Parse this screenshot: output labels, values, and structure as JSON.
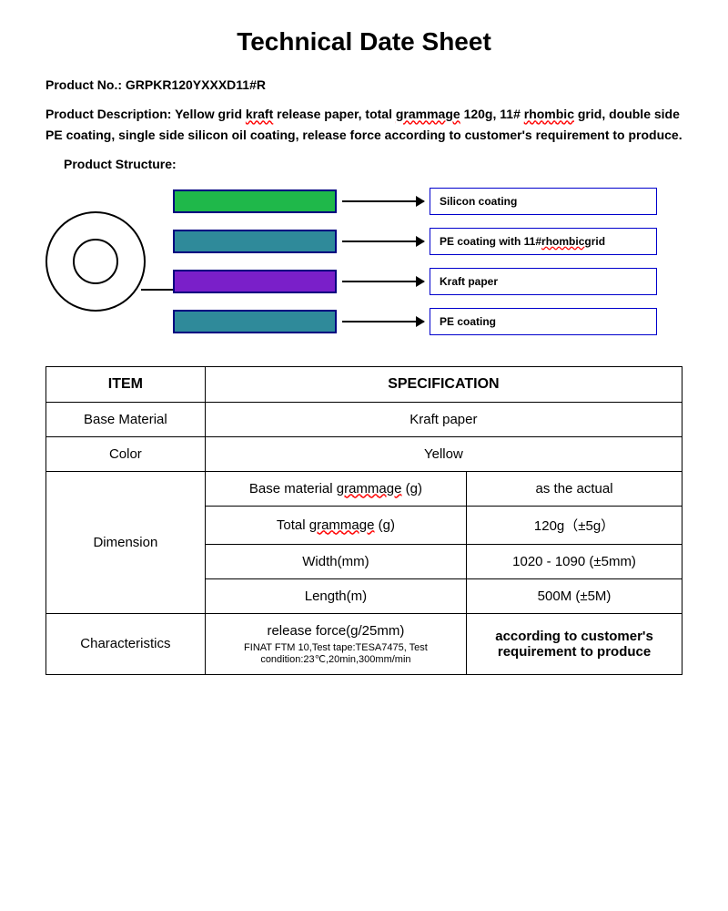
{
  "title": "Technical Date Sheet",
  "product_no_label": "Product No.: ",
  "product_no": "GRPKR120YXXXD11#R",
  "desc_label": "Product Description: ",
  "desc_text_1": "Yellow grid ",
  "desc_kraft": "kraft",
  "desc_text_2": " release paper, total ",
  "desc_grammage": "grammage",
  "desc_text_3": " 120g, 11# ",
  "desc_rhombic": "rhombic",
  "desc_text_4": " grid, double side PE coating, single side silicon oil coating, release force according to customer's requirement to produce.",
  "structure_label": "Product Structure:",
  "diagram": {
    "layers": [
      {
        "color": "#1fb84a",
        "label": "Silicon coating"
      },
      {
        "color": "#2f8a9a",
        "label": "PE coating with 11# rhombic grid",
        "underline_word": "rhombic"
      },
      {
        "color": "#7a1fc9",
        "label": "Kraft paper"
      },
      {
        "color": "#2f8a9a",
        "label": "PE coating"
      }
    ],
    "bar_border": "#000080",
    "label_border": "#0000cc"
  },
  "table": {
    "header_item": "ITEM",
    "header_spec": "SPECIFICATION",
    "rows": {
      "base_material": {
        "item": "Base Material",
        "value": "Kraft paper"
      },
      "color": {
        "item": "Color",
        "value": "Yellow"
      },
      "dimension": {
        "item": "Dimension",
        "sub": [
          {
            "label_pre": "Base material ",
            "label_u": "grammage",
            "label_post": " (g)",
            "value": "as the actual"
          },
          {
            "label_pre": "Total ",
            "label_u": "grammage",
            "label_post": " (g)",
            "value": "120g（±5g）"
          },
          {
            "label": "Width(mm)",
            "value": "1020 - 1090 (±5mm)"
          },
          {
            "label": "Length(m)",
            "value": "500M (±5M)"
          }
        ]
      },
      "characteristics": {
        "item": "Characteristics",
        "label": "release force(g/25mm)",
        "sub": "FINAT FTM 10,Test tape:TESA7475, Test condition:23℃,20min,300mm/min",
        "value": "according to customer's requirement to produce"
      }
    }
  }
}
